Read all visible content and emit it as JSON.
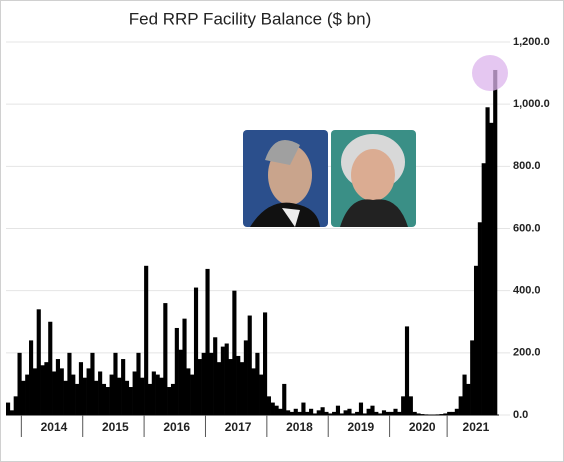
{
  "chart_data": {
    "type": "bar",
    "title": "Fed RRP Facility Balance ($ bn)",
    "color": "#000000",
    "grid": true,
    "categories": [
      null,
      null,
      null,
      null,
      null,
      null,
      null,
      null,
      null,
      null,
      null,
      null,
      "2014",
      null,
      null,
      null,
      null,
      null,
      null,
      null,
      null,
      null,
      null,
      null,
      null,
      null,
      null,
      null,
      "2015",
      null,
      null,
      null,
      null,
      null,
      null,
      null,
      null,
      null,
      null,
      null,
      null,
      null,
      null,
      null,
      "2016",
      null,
      null,
      null,
      null,
      null,
      null,
      null,
      null,
      null,
      null,
      null,
      null,
      null,
      null,
      null,
      "2017",
      null,
      null,
      null,
      null,
      null,
      null,
      null,
      null,
      null,
      null,
      null,
      null,
      null,
      null,
      null,
      "2018",
      null,
      null,
      null,
      null,
      null,
      null,
      null,
      null,
      null,
      null,
      null,
      null,
      null,
      null,
      null,
      "2019",
      null,
      null,
      null,
      null,
      null,
      null,
      null,
      null,
      null,
      null,
      null,
      null,
      null,
      null,
      null,
      "2020",
      null,
      null,
      null,
      null,
      null,
      null,
      null,
      null,
      null,
      null,
      null,
      null,
      null,
      "2021",
      null,
      null,
      null,
      null,
      null
    ],
    "values": [
      40,
      15,
      60,
      200,
      110,
      130,
      240,
      150,
      340,
      160,
      170,
      300,
      140,
      180,
      150,
      110,
      200,
      130,
      100,
      170,
      120,
      150,
      200,
      110,
      140,
      100,
      90,
      130,
      200,
      120,
      180,
      110,
      90,
      140,
      200,
      120,
      480,
      100,
      140,
      130,
      120,
      360,
      90,
      100,
      280,
      210,
      310,
      150,
      130,
      410,
      180,
      200,
      470,
      200,
      250,
      170,
      220,
      230,
      180,
      400,
      190,
      170,
      240,
      320,
      150,
      200,
      130,
      330,
      60,
      40,
      30,
      20,
      100,
      15,
      10,
      20,
      10,
      40,
      10,
      20,
      5,
      15,
      25,
      10,
      5,
      10,
      30,
      5,
      15,
      20,
      5,
      10,
      40,
      5,
      20,
      30,
      10,
      5,
      15,
      10,
      10,
      20,
      10,
      60,
      285,
      60,
      10,
      5,
      3,
      2,
      1,
      1,
      2,
      3,
      5,
      10,
      10,
      20,
      60,
      130,
      100,
      240,
      480,
      620,
      810,
      990,
      940,
      1110
    ],
    "ylim": [
      0,
      1200
    ],
    "yticks": [
      {
        "value": 0,
        "label": "0.0"
      },
      {
        "value": 200,
        "label": "200.0"
      },
      {
        "value": 400,
        "label": "400.0"
      },
      {
        "value": 600,
        "label": "600.0"
      },
      {
        "value": 800,
        "label": "800.0"
      },
      {
        "value": 1000,
        "label": "1,000.0"
      },
      {
        "value": 1200,
        "label": "1,200.0"
      }
    ]
  }
}
